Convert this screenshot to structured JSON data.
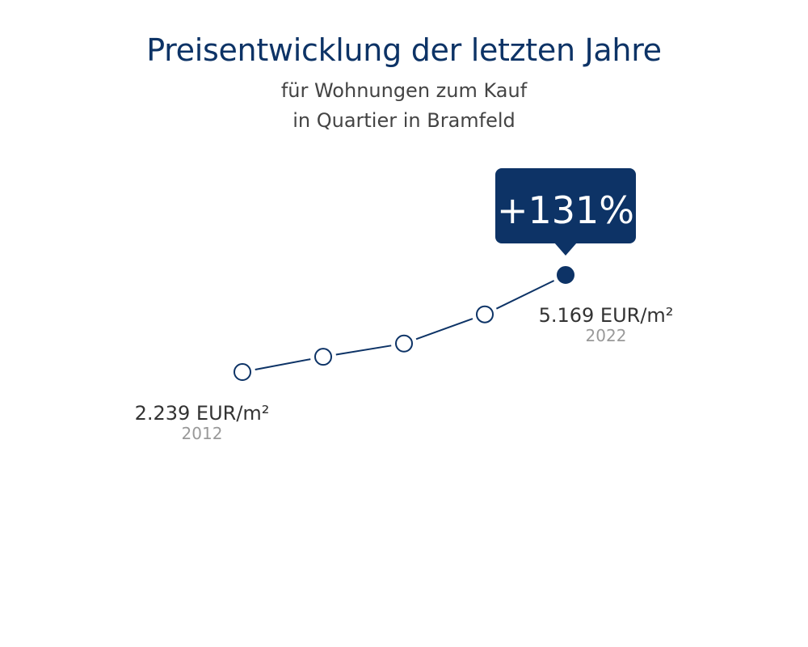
{
  "header": {
    "title": "Preisentwicklung der letzten Jahre",
    "subtitle_line1": "für Wohnungen zum Kauf",
    "subtitle_line2": "in Quartier in Bramfeld"
  },
  "badge": {
    "text": "+131%"
  },
  "labels": {
    "start_value": "2.239 EUR/m²",
    "start_year": "2012",
    "end_value": "5.169 EUR/m²",
    "end_year": "2022"
  },
  "colors": {
    "accent": "#0d3366",
    "text": "#333333",
    "muted": "#999999"
  },
  "chart_data": {
    "type": "line",
    "x": [
      "2012",
      "",
      "",
      "",
      "2022"
    ],
    "values": [
      2239,
      2700,
      3100,
      3980,
      5169
    ],
    "value_labels": [
      "2.239 EUR/m²",
      "",
      "",
      "",
      "5.169 EUR/m²"
    ],
    "change_label": "+131%",
    "title": "Preisentwicklung der letzten Jahre",
    "subtitle": "für Wohnungen zum Kauf in Quartier in Bramfeld",
    "unit": "EUR/m²",
    "grid": false,
    "legend": "none"
  }
}
